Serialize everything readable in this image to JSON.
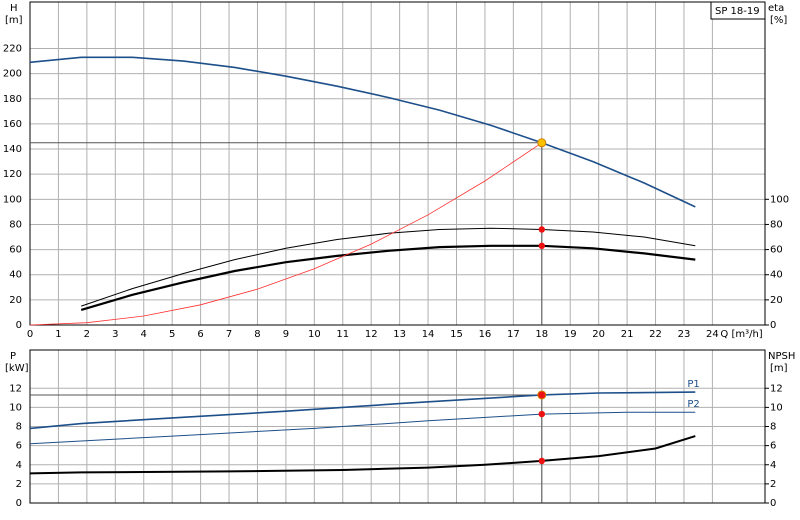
{
  "chart_data": [
    {
      "type": "line",
      "box_label": "SP 18-19",
      "y_label": "H",
      "y_unit": "[m]",
      "y2_label": "eta",
      "y2_unit": "[%]",
      "x_label": "Q [m³/h]",
      "xlim": [
        0,
        25.85
      ],
      "xticks": [
        0,
        1,
        2,
        3,
        4,
        5,
        6,
        7,
        8,
        9,
        10,
        11,
        12,
        13,
        14,
        15,
        16,
        17,
        18,
        19,
        20,
        21,
        22,
        23,
        24
      ],
      "ylim": [
        0,
        257
      ],
      "yticks": [
        0,
        20,
        40,
        60,
        80,
        100,
        120,
        140,
        160,
        180,
        200,
        220
      ],
      "y2lim": [
        0,
        257
      ],
      "y2ticks": [
        0,
        20,
        40,
        60,
        80,
        100
      ],
      "grid": true,
      "show_xtick_labels": true,
      "series": [
        {
          "color": "#1d4f8a",
          "width": 1.6,
          "x": [
            0,
            1.8,
            3.6,
            5.4,
            7.2,
            9,
            10.8,
            12.6,
            14.4,
            16.2,
            18,
            19.8,
            21.6,
            23.4
          ],
          "values": [
            209,
            213,
            213,
            210,
            205,
            198,
            190,
            181,
            171,
            159,
            145,
            130,
            113,
            94
          ]
        },
        {
          "color": "#000000",
          "width": 1,
          "axis": "y2",
          "x": [
            1.8,
            3.6,
            5.4,
            7.2,
            9,
            10.8,
            12.6,
            14.4,
            16.2,
            18,
            19.8,
            21.6,
            23.4
          ],
          "values": [
            15,
            29,
            41,
            52,
            61,
            68,
            73,
            76,
            77,
            76,
            74,
            70,
            63
          ]
        },
        {
          "color": "#000000",
          "width": 2.2,
          "axis": "y2",
          "x": [
            1.8,
            3.6,
            5.4,
            7.2,
            9,
            10.8,
            12.6,
            14.4,
            16.2,
            18,
            19.8,
            21.6,
            23.4
          ],
          "values": [
            12,
            24,
            34,
            43,
            50,
            55,
            59,
            62,
            63,
            63,
            61,
            57,
            52
          ]
        },
        {
          "color": "#ff3030",
          "width": 0.8,
          "x": [
            0,
            2,
            4,
            6,
            8,
            10,
            12,
            14,
            16,
            18
          ],
          "values": [
            0,
            1.8,
            7.2,
            16.1,
            28.6,
            44.8,
            64.4,
            87.7,
            114.6,
            145
          ]
        }
      ],
      "points": {
        "x": [
          18,
          18,
          18
        ],
        "values": [
          145,
          76,
          63
        ],
        "colors": [
          "#ffc000",
          "#ee1111",
          "#ee1111"
        ]
      }
    },
    {
      "type": "line",
      "y_label": "P",
      "y_unit": "[kW]",
      "y2_label": "NPSH",
      "y2_unit": "[m]",
      "xlim": [
        0,
        25.85
      ],
      "xticks": [
        0,
        1,
        2,
        3,
        4,
        5,
        6,
        7,
        8,
        9,
        10,
        11,
        12,
        13,
        14,
        15,
        16,
        17,
        18,
        19,
        20,
        21,
        22,
        23,
        24
      ],
      "ylim": [
        0,
        16
      ],
      "yticks": [
        0,
        2,
        4,
        6,
        8,
        10,
        12
      ],
      "y2lim": [
        0,
        16
      ],
      "y2ticks": [
        0,
        2,
        4,
        6,
        8,
        10,
        12
      ],
      "grid": true,
      "show_xtick_labels": false,
      "series": [
        {
          "name": "P1",
          "color": "#1d4f8a",
          "width": 1.6,
          "x": [
            0,
            1.8,
            5,
            9,
            13,
            18,
            20,
            23.4
          ],
          "values": [
            7.8,
            8.3,
            8.9,
            9.6,
            10.4,
            11.3,
            11.5,
            11.6
          ]
        },
        {
          "name": "P2",
          "color": "#1d4f8a",
          "width": 1,
          "x": [
            0,
            5,
            10,
            14,
            18,
            21,
            23.4
          ],
          "values": [
            6.2,
            7.0,
            7.8,
            8.6,
            9.3,
            9.5,
            9.5
          ]
        },
        {
          "color": "#000000",
          "width": 2,
          "axis": "y2",
          "x": [
            0,
            1.8,
            7,
            11,
            14,
            16,
            18,
            20,
            22,
            23.4
          ],
          "values": [
            3.1,
            3.2,
            3.3,
            3.45,
            3.7,
            4.0,
            4.4,
            4.9,
            5.7,
            7.0
          ]
        }
      ],
      "points": {
        "x": [
          18,
          18,
          18
        ],
        "values": [
          11.3,
          9.3,
          4.4
        ],
        "colors": [
          "#ee1111",
          "#ee1111",
          "#ee1111"
        ]
      }
    }
  ]
}
